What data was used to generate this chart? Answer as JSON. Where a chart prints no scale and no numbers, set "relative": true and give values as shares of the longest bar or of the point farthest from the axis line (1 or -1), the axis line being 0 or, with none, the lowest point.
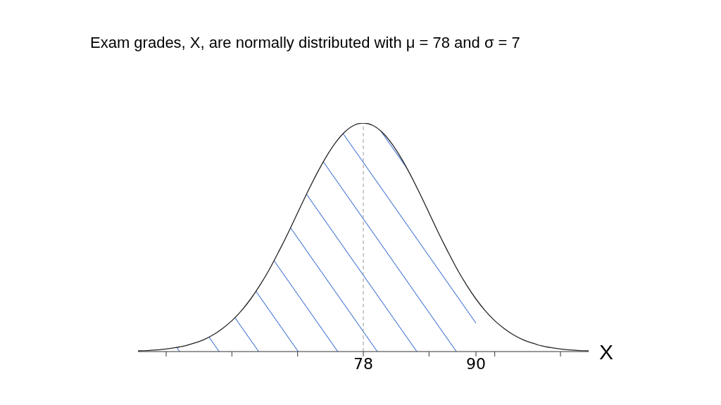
{
  "chart_data": {
    "type": "line",
    "title": "Exam grades, X, are normally distributed with μ = 78 and σ = 7",
    "xlabel": "X",
    "relative": true,
    "x": [
      54,
      55,
      56,
      57,
      58,
      59,
      60,
      61,
      62,
      63,
      64,
      65,
      66,
      67,
      68,
      69,
      70,
      71,
      72,
      73,
      74,
      75,
      76,
      77,
      78,
      79,
      80,
      81,
      82,
      83,
      84,
      85,
      86,
      87,
      88,
      89,
      90,
      91,
      92,
      93,
      94,
      95,
      96,
      97,
      98,
      99,
      100,
      101,
      102
    ],
    "series": [
      {
        "type": "area",
        "color": "#3a6fd0",
        "values": [
          0.003,
          0.004,
          0.007,
          0.011,
          0.017,
          0.025,
          0.037,
          0.052,
          0.073,
          0.101,
          0.135,
          0.178,
          0.23,
          0.291,
          0.36,
          0.438,
          0.52,
          0.607,
          0.693,
          0.775,
          0.849,
          0.912,
          0.96,
          0.99,
          1,
          0.99,
          0.96,
          0.912,
          0.849,
          0.775,
          0.693,
          0.607,
          0.52,
          0.438,
          0.36,
          0.291,
          0.23,
          null,
          null,
          null,
          null,
          null,
          null,
          null,
          null,
          null,
          null,
          null,
          null
        ]
      },
      {
        "color": "#222222",
        "values": [
          0.003,
          0.004,
          0.007,
          0.011,
          0.017,
          0.025,
          0.037,
          0.052,
          0.073,
          0.101,
          0.135,
          0.178,
          0.23,
          0.291,
          0.36,
          0.438,
          0.52,
          0.607,
          0.693,
          0.775,
          0.849,
          0.912,
          0.96,
          0.99,
          1,
          0.99,
          0.96,
          0.912,
          0.849,
          0.775,
          0.693,
          0.607,
          0.52,
          0.438,
          0.36,
          0.291,
          0.23,
          0.178,
          0.135,
          0.101,
          0.073,
          0.052,
          0.037,
          0.025,
          0.017,
          0.011,
          0.007,
          0.004,
          0.003
        ]
      }
    ],
    "xlim": [
      54,
      102
    ],
    "xticks": [
      {
        "value": 57,
        "label": null
      },
      {
        "value": 64,
        "label": null
      },
      {
        "value": 71,
        "label": null
      },
      78,
      {
        "value": 85,
        "label": null
      },
      90,
      {
        "value": 92,
        "label": null
      },
      {
        "value": 99,
        "label": null
      }
    ],
    "ref_lines": [
      {
        "axis": "x",
        "value": 78,
        "color": "#999999",
        "line_style": "dashed"
      }
    ],
    "grid": false,
    "marker": "none"
  }
}
